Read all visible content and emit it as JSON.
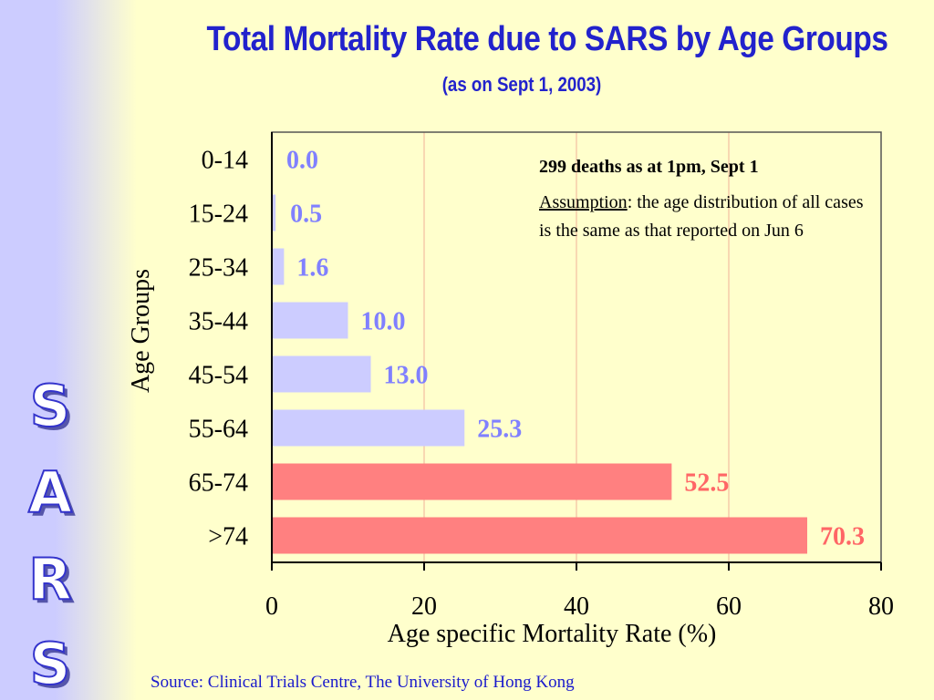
{
  "side_letters": [
    "S",
    "A",
    "R",
    "S"
  ],
  "colors": {
    "light_bar": "#ccccff",
    "dark_bar": "#ff8080",
    "light_label": "#8080ff",
    "dark_label": "#ff6666",
    "grid": "#f5ccaa",
    "axis": "#000000"
  },
  "chart_data": {
    "type": "bar",
    "orientation": "horizontal",
    "title": "Total Mortality Rate due to SARS by Age Groups",
    "subtitle": "(as on Sept 1, 2003)",
    "xlabel": "Age specific Mortality Rate (%)",
    "ylabel": "Age Groups",
    "categories": [
      "0-14",
      "15-24",
      "25-34",
      "35-44",
      "45-54",
      "55-64",
      "65-74",
      ">74"
    ],
    "values": [
      0.0,
      0.5,
      1.6,
      10.0,
      13.0,
      25.3,
      52.5,
      70.3
    ],
    "value_labels": [
      "0.0",
      "0.5",
      "1.6",
      "10.0",
      "13.0",
      "25.3",
      "52.5",
      "70.3"
    ],
    "highlight": [
      false,
      false,
      false,
      false,
      false,
      false,
      true,
      true
    ],
    "xlim": [
      0,
      80
    ],
    "xticks": [
      0,
      20,
      40,
      60,
      80
    ],
    "grid": true,
    "annotation": {
      "headline": "299 deaths as at 1pm, Sept 1",
      "assumption_label": "Assumption",
      "assumption_text": ": the age distribution of all cases is the same as that reported on Jun 6"
    }
  },
  "source": "Source: Clinical Trials Centre, The University of Hong Kong"
}
